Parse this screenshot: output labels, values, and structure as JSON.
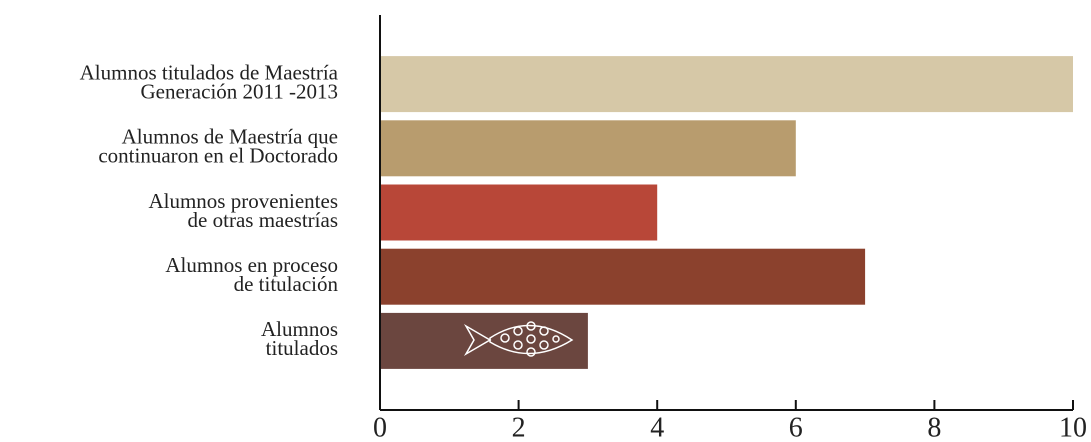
{
  "chart_data": {
    "type": "hbar",
    "categories": [
      [
        "Alumnos titulados de Maestría",
        "Generación 2011 -2013"
      ],
      [
        "Alumnos de Maestría que",
        "continuaron en el Doctorado"
      ],
      [
        "Alumnos provenientes",
        "de otras maestrías"
      ],
      [
        "Alumnos en proceso",
        "de titulación"
      ],
      [
        "Alumnos",
        "titulados"
      ]
    ],
    "values": [
      10,
      6,
      4,
      7,
      3
    ],
    "colors": [
      "#d6c8a7",
      "#b89c6e",
      "#b84738",
      "#8b412d",
      "#6b463f"
    ],
    "xlim": [
      0,
      10
    ],
    "xticks": [
      0,
      2,
      4,
      6,
      8,
      10
    ]
  }
}
